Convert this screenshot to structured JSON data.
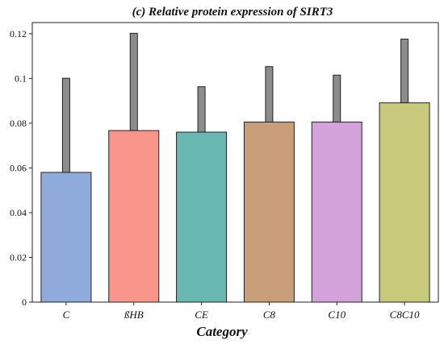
{
  "chart_data": {
    "type": "bar",
    "title": "(c) Relative protein expression of SIRT3",
    "xlabel": "Category",
    "ylabel": "",
    "ylim": [
      0,
      0.125
    ],
    "yticks": [
      0,
      0.02,
      0.04,
      0.06,
      0.08,
      0.1,
      0.12
    ],
    "ytick_labels": [
      "0",
      "0.02",
      "0.04",
      "0.06",
      "0.08",
      "0.1",
      "0.12"
    ],
    "categories": [
      "C",
      "ßHB",
      "CE",
      "C8",
      "C10",
      "C8C10"
    ],
    "values": [
      0.058,
      0.0767,
      0.076,
      0.0805,
      0.0805,
      0.0891
    ],
    "error_upper": [
      0.1001,
      0.1202,
      0.0963,
      0.1053,
      0.1015,
      0.1176
    ],
    "colors": [
      "#8eabdb",
      "#fa958a",
      "#68b8b1",
      "#c89f79",
      "#d4a2da",
      "#c9c97b"
    ],
    "error_bar_color": "#8c8c8c",
    "grid": false
  }
}
